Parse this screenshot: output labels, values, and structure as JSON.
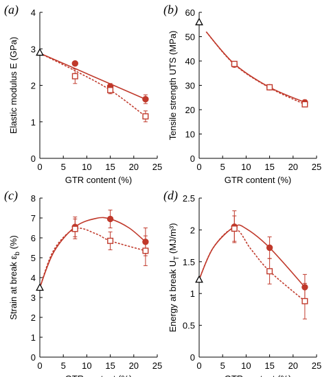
{
  "colors": {
    "series": "#c0392b",
    "control": "#000000",
    "axis": "#000000"
  },
  "chart_data": [
    {
      "type": "scatter",
      "panel": "(a)",
      "xlabel": "GTR content (%)",
      "ylabel": "Elastic modulus E (GPa)",
      "xlim": [
        0,
        25
      ],
      "ylim": [
        0,
        4
      ],
      "xticks": [
        "0",
        "5",
        "10",
        "15",
        "20",
        "25"
      ],
      "yticks": [
        "0",
        "1",
        "2",
        "3",
        "4"
      ],
      "grid": false,
      "control": {
        "x": 0,
        "y": 2.9
      },
      "series": [
        {
          "marker": "filled-circle",
          "line": "solid",
          "x": [
            7.5,
            15,
            22.5
          ],
          "y": [
            2.6,
            1.97,
            1.62
          ],
          "err": [
            0.05,
            0.08,
            0.12
          ],
          "fit": [
            [
              0,
              2.88
            ],
            [
              22.5,
              1.62
            ]
          ]
        },
        {
          "marker": "open-square",
          "line": "dashed",
          "x": [
            7.5,
            15,
            22.5
          ],
          "y": [
            2.25,
            1.87,
            1.15
          ],
          "err": [
            0.2,
            0.1,
            0.15
          ],
          "fit": [
            [
              0,
              2.88
            ],
            [
              7.5,
              2.4
            ],
            [
              15,
              1.87
            ],
            [
              22.5,
              1.15
            ]
          ]
        }
      ]
    },
    {
      "type": "scatter",
      "panel": "(b)",
      "xlabel": "GTR content (%)",
      "ylabel": "Tensile strength UTS (MPa)",
      "xlim": [
        0,
        25
      ],
      "ylim": [
        0,
        60
      ],
      "xticks": [
        "0",
        "5",
        "10",
        "15",
        "20",
        "25"
      ],
      "yticks": [
        "0",
        "10",
        "20",
        "30",
        "40",
        "50",
        "60"
      ],
      "grid": false,
      "control": {
        "x": 0,
        "y": 56
      },
      "series": [
        {
          "marker": "filled-circle",
          "line": "solid",
          "x": [
            7.5,
            15,
            22.5
          ],
          "y": [
            38.5,
            29.2,
            23
          ],
          "err": [
            1,
            1,
            1
          ],
          "fit": [
            [
              1.5,
              52
            ],
            [
              7.5,
              38.8
            ],
            [
              15,
              29.2
            ],
            [
              22.5,
              23
            ]
          ]
        },
        {
          "marker": "open-square",
          "line": "dashed",
          "x": [
            7.5,
            15,
            22.5
          ],
          "y": [
            38.8,
            29.2,
            22.2
          ],
          "err": [
            1,
            1,
            1
          ],
          "fit": [
            [
              1.5,
              52
            ],
            [
              7.5,
              38.6
            ],
            [
              15,
              29
            ],
            [
              22.5,
              22.2
            ]
          ]
        }
      ]
    },
    {
      "type": "scatter",
      "panel": "(c)",
      "xlabel": "GTR content (%)",
      "ylabel": "Strain at break ε",
      "ylabel_sub": "b",
      "ylabel_tail": " (%)",
      "xlim": [
        0,
        25
      ],
      "ylim": [
        0,
        8
      ],
      "xticks": [
        "0",
        "5",
        "10",
        "15",
        "20",
        "25"
      ],
      "yticks": [
        "0",
        "1",
        "2",
        "3",
        "4",
        "5",
        "6",
        "7",
        "8"
      ],
      "grid": false,
      "control": {
        "x": 0,
        "y": 3.5
      },
      "series": [
        {
          "marker": "filled-circle",
          "line": "solid",
          "x": [
            7.5,
            15,
            22.5
          ],
          "y": [
            6.55,
            6.95,
            5.8
          ],
          "err": [
            0.5,
            0.45,
            0.7
          ],
          "fit": [
            [
              0,
              3.5
            ],
            [
              3,
              5.3
            ],
            [
              7.5,
              6.55
            ],
            [
              12,
              6.98
            ],
            [
              15,
              6.95
            ],
            [
              19,
              6.5
            ],
            [
              22.5,
              5.8
            ]
          ]
        },
        {
          "marker": "open-square",
          "line": "dashed",
          "x": [
            7.5,
            15,
            22.5
          ],
          "y": [
            6.45,
            5.85,
            5.35
          ],
          "err": [
            0.5,
            0.45,
            0.75
          ],
          "fit": [
            [
              0,
              3.5
            ],
            [
              3,
              5.4
            ],
            [
              7.5,
              6.45
            ],
            [
              12,
              6.2
            ],
            [
              15,
              5.85
            ],
            [
              22.5,
              5.35
            ]
          ]
        }
      ]
    },
    {
      "type": "scatter",
      "panel": "(d)",
      "xlabel": "GTR content (%)",
      "ylabel": "Energy at break U",
      "ylabel_sub": "T",
      "ylabel_tail": " (MJ/m³)",
      "xlim": [
        0,
        25
      ],
      "ylim": [
        0,
        2.5
      ],
      "xticks": [
        "0",
        "5",
        "10",
        "15",
        "20",
        "25"
      ],
      "yticks": [
        "0",
        "0.5",
        "1",
        "1.5",
        "2",
        "2.5"
      ],
      "grid": false,
      "control": {
        "x": 0,
        "y": 1.22
      },
      "series": [
        {
          "marker": "filled-circle",
          "line": "solid",
          "x": [
            7.5,
            15,
            22.5
          ],
          "y": [
            2.05,
            1.72,
            1.1
          ],
          "err": [
            0.25,
            0.17,
            0.2
          ],
          "fit": [
            [
              0,
              1.22
            ],
            [
              3,
              1.72
            ],
            [
              7.5,
              2.05
            ],
            [
              10,
              2.02
            ],
            [
              15,
              1.72
            ],
            [
              22.5,
              1.1
            ]
          ]
        },
        {
          "marker": "open-square",
          "line": "dashed",
          "x": [
            7.5,
            15,
            22.5
          ],
          "y": [
            2.02,
            1.35,
            0.88
          ],
          "err": [
            0.2,
            0.2,
            0.28
          ],
          "fit": [
            [
              0,
              1.22
            ],
            [
              3,
              1.72
            ],
            [
              7.5,
              2.02
            ],
            [
              11,
              1.7
            ],
            [
              15,
              1.35
            ],
            [
              22.5,
              0.88
            ]
          ]
        }
      ]
    }
  ]
}
